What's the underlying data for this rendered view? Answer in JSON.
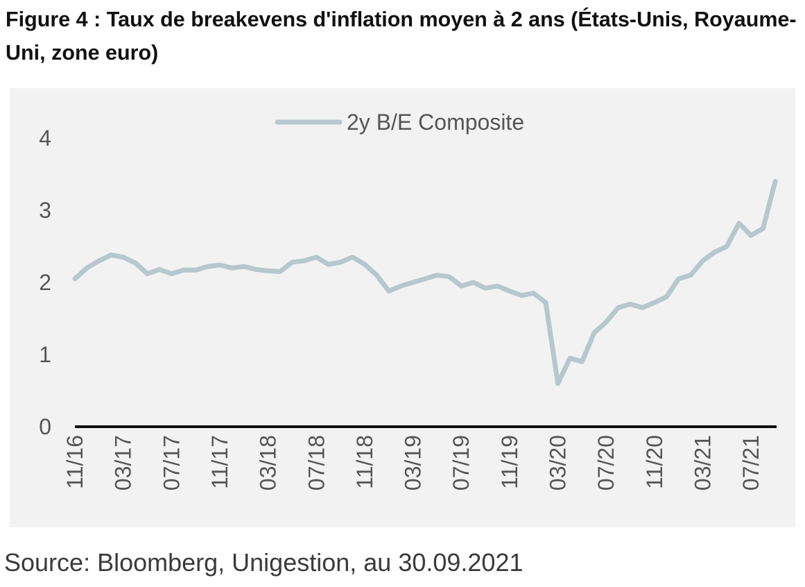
{
  "figure": {
    "title": "Figure 4 : Taux de breakevens d'inflation moyen à 2 ans (États-Unis, Royaume-Uni, zone euro)",
    "source": "Source: Bloomberg, Unigestion, au 30.09.2021"
  },
  "chart_data": {
    "type": "line",
    "title": "Figure 4 : Taux de breakevens d'inflation moyen à 2 ans (États-Unis, Royaume-Uni, zone euro)",
    "xlabel": "",
    "ylabel": "",
    "ylim": [
      0,
      4
    ],
    "yticks": [
      "0",
      "1",
      "2",
      "3",
      "4"
    ],
    "xtick_labels": [
      "11/16",
      "03/17",
      "07/17",
      "11/17",
      "03/18",
      "07/18",
      "11/18",
      "03/19",
      "07/19",
      "11/19",
      "03/20",
      "07/20",
      "11/20",
      "03/21",
      "07/21"
    ],
    "grid": false,
    "legend_position": "top-center",
    "series": [
      {
        "name": "2y B/E Composite",
        "color": "#b5c8cd",
        "x": [
          "2016-11",
          "2016-12",
          "2017-01",
          "2017-02",
          "2017-03",
          "2017-04",
          "2017-05",
          "2017-06",
          "2017-07",
          "2017-08",
          "2017-09",
          "2017-10",
          "2017-11",
          "2017-12",
          "2018-01",
          "2018-02",
          "2018-03",
          "2018-04",
          "2018-05",
          "2018-06",
          "2018-07",
          "2018-08",
          "2018-09",
          "2018-10",
          "2018-11",
          "2018-12",
          "2019-01",
          "2019-02",
          "2019-03",
          "2019-04",
          "2019-05",
          "2019-06",
          "2019-07",
          "2019-08",
          "2019-09",
          "2019-10",
          "2019-11",
          "2019-12",
          "2020-01",
          "2020-02",
          "2020-03",
          "2020-04",
          "2020-05",
          "2020-06",
          "2020-07",
          "2020-08",
          "2020-09",
          "2020-10",
          "2020-11",
          "2020-12",
          "2021-01",
          "2021-02",
          "2021-03",
          "2021-04",
          "2021-05",
          "2021-06",
          "2021-07",
          "2021-08",
          "2021-09"
        ],
        "values": [
          2.05,
          2.2,
          2.3,
          2.38,
          2.35,
          2.27,
          2.12,
          2.18,
          2.12,
          2.17,
          2.17,
          2.22,
          2.24,
          2.2,
          2.22,
          2.18,
          2.16,
          2.15,
          2.28,
          2.3,
          2.35,
          2.25,
          2.28,
          2.35,
          2.25,
          2.1,
          1.88,
          1.95,
          2.0,
          2.05,
          2.1,
          2.08,
          1.95,
          2.0,
          1.92,
          1.95,
          1.88,
          1.82,
          1.85,
          1.72,
          0.6,
          0.95,
          0.9,
          1.3,
          1.45,
          1.65,
          1.7,
          1.65,
          1.72,
          1.8,
          2.05,
          2.1,
          2.3,
          2.42,
          2.5,
          2.82,
          2.65,
          2.75,
          3.4
        ]
      }
    ]
  }
}
